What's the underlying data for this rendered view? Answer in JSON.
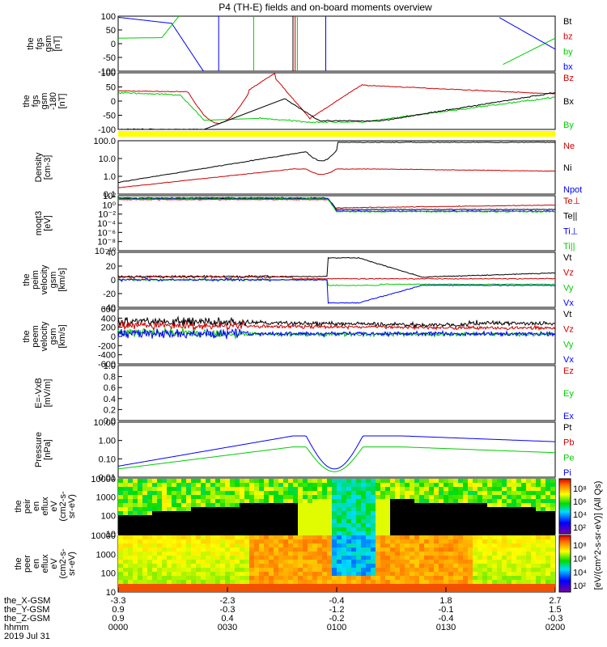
{
  "title": "P4 (TH-E) fields and on-board moments overview",
  "chart_data": [
    {
      "type": "line",
      "ylabel_lines": [
        "the",
        "fgs",
        "gsm",
        "[nT]"
      ],
      "yticks": [
        "100",
        "50",
        "0",
        "-50",
        "-100"
      ],
      "ylim": [
        -100,
        100
      ],
      "legend": [
        {
          "name": "Bt",
          "color": "#000000"
        },
        {
          "name": "bz",
          "color": "#cc0000"
        },
        {
          "name": "by",
          "color": "#00cc00"
        },
        {
          "name": "bx",
          "color": "#0000ff"
        }
      ]
    },
    {
      "type": "line",
      "ylabel_lines": [
        "the",
        "fgs",
        "gsm",
        "-180",
        "[nT]"
      ],
      "yticks": [
        "100",
        "50",
        "0",
        "-50",
        "-100"
      ],
      "ylim": [
        -120,
        100
      ],
      "legend": [
        {
          "name": "Bz",
          "color": "#cc0000"
        },
        {
          "name": "Bx",
          "color": "#000000"
        },
        {
          "name": "By",
          "color": "#00cc00"
        }
      ]
    },
    {
      "type": "line",
      "log": true,
      "ylabel_lines": [
        "Density",
        "[cm-3]"
      ],
      "yticks": [
        "100.0",
        "10.0",
        "1.0",
        "0.1"
      ],
      "ylim": [
        0.1,
        200
      ],
      "legend": [
        {
          "name": "Ne",
          "color": "#cc0000"
        },
        {
          "name": "Ni",
          "color": "#000000"
        },
        {
          "name": "Npot",
          "color": "#0000ff"
        }
      ]
    },
    {
      "type": "line",
      "log": true,
      "ylabel_lines": [
        "moqt3",
        "[eV]"
      ],
      "yticks": [
        "10²",
        "10⁰",
        "10⁻²",
        "10⁻⁴",
        "10⁻⁶",
        "10⁻⁸",
        "10⁻¹⁰"
      ],
      "legend": [
        {
          "name": "Te⊥",
          "color": "#cc0000"
        },
        {
          "name": "Te||",
          "color": "#000000"
        },
        {
          "name": "Ti⊥",
          "color": "#0000ff"
        },
        {
          "name": "Ti||",
          "color": "#00cc00"
        }
      ]
    },
    {
      "type": "line",
      "ylabel_lines": [
        "the",
        "peim",
        "velocity",
        "gsm",
        "[km/s]"
      ],
      "yticks": [
        "40",
        "20",
        "0",
        "-20",
        "-40"
      ],
      "ylim": [
        -40,
        40
      ],
      "legend": [
        {
          "name": "Vt",
          "color": "#000000"
        },
        {
          "name": "Vz",
          "color": "#cc0000"
        },
        {
          "name": "Vy",
          "color": "#00cc00"
        },
        {
          "name": "Vx",
          "color": "#0000ff"
        }
      ]
    },
    {
      "type": "line",
      "ylabel_lines": [
        "the",
        "peem",
        "velocity",
        "gsm",
        "[km/s]"
      ],
      "yticks": [
        "600",
        "400",
        "200",
        "0",
        "-200",
        "-400",
        "-600"
      ],
      "ylim": [
        -600,
        600
      ],
      "legend": [
        {
          "name": "Vt",
          "color": "#000000"
        },
        {
          "name": "Vz",
          "color": "#cc0000"
        },
        {
          "name": "Vy",
          "color": "#00cc00"
        },
        {
          "name": "Vx",
          "color": "#0000ff"
        }
      ]
    },
    {
      "type": "line",
      "ylabel_lines": [
        "E=-VxB",
        "[mV/m]"
      ],
      "yticks": [
        "1.0",
        "0.8",
        "0.6",
        "0.4",
        "0.2",
        "0.0"
      ],
      "ylim": [
        0,
        1
      ],
      "legend": [
        {
          "name": "Ez",
          "color": "#cc0000"
        },
        {
          "name": "Ey",
          "color": "#00cc00"
        },
        {
          "name": "Ex",
          "color": "#0000ff"
        }
      ]
    },
    {
      "type": "line",
      "log": true,
      "ylabel_lines": [
        "Pressure",
        "[nPa]"
      ],
      "yticks": [
        "10.00",
        "1.00",
        "0.10",
        "0.01"
      ],
      "ylim": [
        0.005,
        25
      ],
      "legend": [
        {
          "name": "Pt",
          "color": "#000000"
        },
        {
          "name": "Pb",
          "color": "#cc0000"
        },
        {
          "name": "Pe",
          "color": "#00cc00"
        },
        {
          "name": "Pi",
          "color": "#0000ff"
        }
      ]
    },
    {
      "type": "heatmap",
      "ylabel_lines": [
        "the",
        "peir",
        "en",
        "eflux",
        "eV",
        "(cm2-s-",
        "sr-eV)"
      ],
      "yticks": [
        "10000",
        "1000",
        "100",
        "10"
      ]
    },
    {
      "type": "heatmap",
      "ylabel_lines": [
        "the",
        "peer",
        "en",
        "eflux",
        "eV",
        "(cm2-s-",
        "sr-eV)"
      ],
      "yticks": [
        "10000",
        "1000",
        "100",
        "10"
      ]
    }
  ],
  "colorbars": [
    {
      "ticks": [
        "10⁸",
        "10⁶",
        "10⁴",
        "10²"
      ]
    },
    {
      "ticks": [
        "10⁸",
        "10⁶",
        "10⁴",
        "10²"
      ]
    }
  ],
  "colorbar_label": "[eV/(cm^2-s-sr-eV)] (All Qs)",
  "xaxis": {
    "row_labels": [
      "the_X-GSM",
      "the_Y-GSM",
      "the_Z-GSM",
      "hhmm",
      "2019 Jul 31"
    ],
    "columns": [
      [
        "-3.3",
        "0.9",
        "0.9",
        "0000"
      ],
      [
        "-2.3",
        "-0.3",
        "0.4",
        "0030"
      ],
      [
        "-0.4",
        "-1.2",
        "-0.2",
        "0100"
      ],
      [
        "1.8",
        "-0.1",
        "-0.4",
        "0130"
      ],
      [
        "2.7",
        "1.5",
        "-0.3",
        "0200"
      ]
    ]
  }
}
